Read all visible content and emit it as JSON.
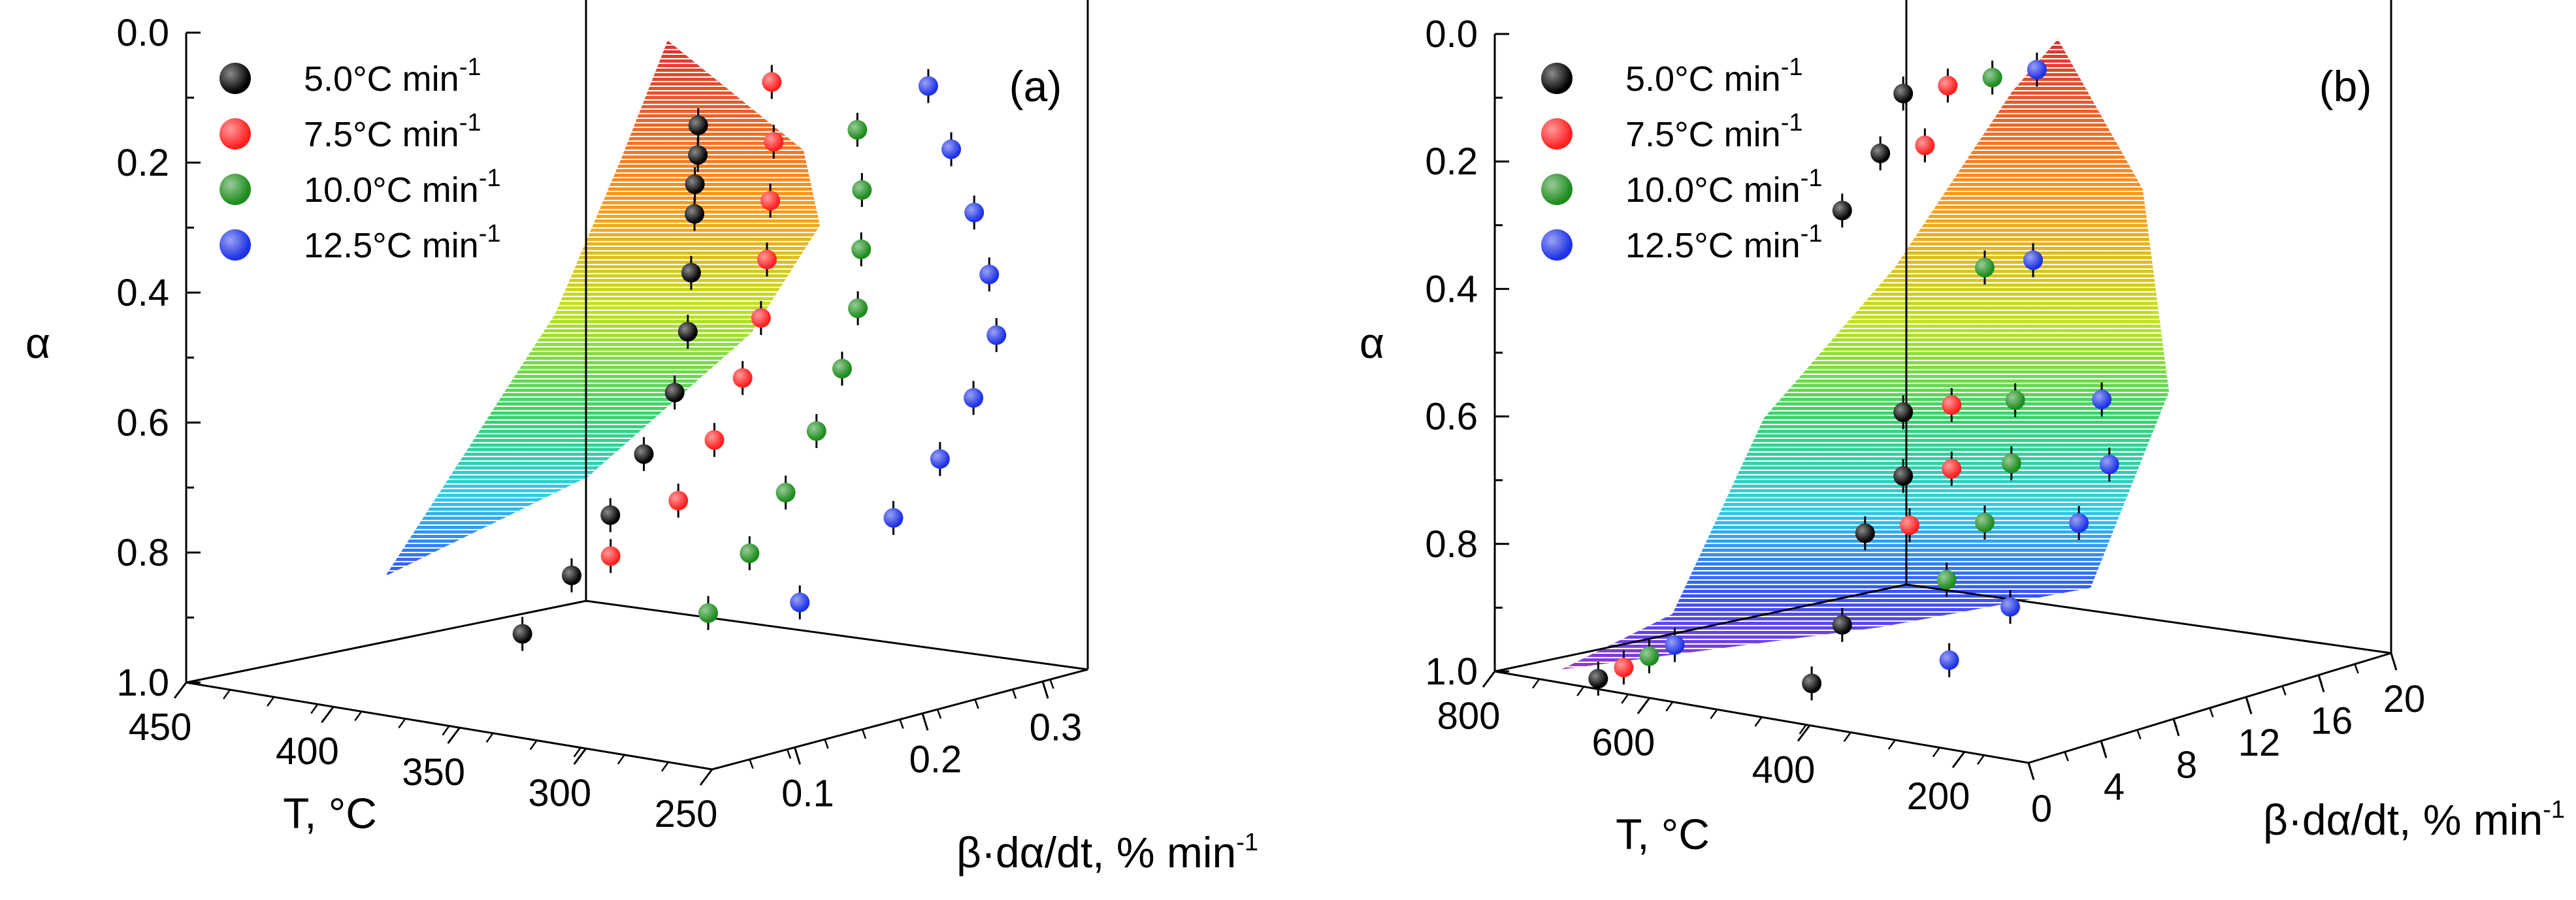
{
  "chart_data": [
    {
      "type": "scatter",
      "subtype": "3d-scatter-with-surface",
      "panel_label": "(a)",
      "axes": {
        "z": {
          "label": "α",
          "ticks": [
            "0.0",
            "0.2",
            "0.4",
            "0.6",
            "0.8",
            "1.0"
          ],
          "range": [
            0.0,
            1.0
          ]
        },
        "x": {
          "label": "T, °C",
          "ticks": [
            "450",
            "400",
            "350",
            "300",
            "250"
          ],
          "range": [
            450,
            250
          ]
        },
        "y": {
          "label_main": "β·dα/dt, % min",
          "label_exp": "-1",
          "ticks": [
            "0.1",
            "0.2",
            "0.3"
          ],
          "range": [
            0.0,
            0.35
          ]
        }
      },
      "legend": [
        {
          "label": "5.0°C min",
          "exp": "-1",
          "color": "#000000"
        },
        {
          "label": "7.5°C min",
          "exp": "-1",
          "color": "#ff2020"
        },
        {
          "label": "10.0°C min",
          "exp": "-1",
          "color": "#1e8c1e"
        },
        {
          "label": "12.5°C min",
          "exp": "-1",
          "color": "#1e32e6"
        }
      ],
      "series": [
        {
          "name": "5.0°C min-1",
          "alpha": [
            0.05,
            0.1,
            0.15,
            0.2,
            0.3,
            0.4,
            0.5,
            0.6,
            0.7,
            0.8,
            0.9
          ],
          "T": [
            300,
            302,
            305,
            307,
            312,
            317,
            322,
            330,
            339,
            350,
            365
          ]
        },
        {
          "name": "7.5°C min-1",
          "alpha": [
            0.0,
            0.1,
            0.2,
            0.3,
            0.4,
            0.5,
            0.6,
            0.7,
            0.8
          ],
          "T": [
            297,
            300,
            305,
            310,
            316,
            323,
            330,
            340,
            362
          ]
        },
        {
          "name": "10.0°C min-1",
          "alpha": [
            0.1,
            0.2,
            0.3,
            0.4,
            0.5,
            0.6,
            0.7,
            0.8,
            0.9
          ],
          "T": [
            295,
            297,
            301,
            306,
            312,
            318,
            326,
            336,
            348
          ]
        },
        {
          "name": "12.5°C min-1",
          "alpha": [
            0.05,
            0.15,
            0.25,
            0.35,
            0.45,
            0.55,
            0.65,
            0.75,
            0.9
          ],
          "T": [
            293,
            288,
            283,
            281,
            282,
            287,
            296,
            310,
            340
          ]
        }
      ]
    },
    {
      "type": "scatter",
      "subtype": "3d-scatter-with-surface",
      "panel_label": "(b)",
      "axes": {
        "z": {
          "label": "α",
          "ticks": [
            "0.0",
            "0.2",
            "0.4",
            "0.6",
            "0.8",
            "1.0"
          ],
          "range": [
            0.0,
            1.0
          ]
        },
        "x": {
          "label": "T, °C",
          "ticks": [
            "800",
            "600",
            "400",
            "200"
          ],
          "range": [
            800,
            100
          ]
        },
        "y": {
          "label_main": "β·dα/dt, % min",
          "label_exp": "-1",
          "ticks": [
            "0",
            "4",
            "8",
            "12",
            "16",
            "20"
          ],
          "range": [
            0,
            20
          ]
        }
      },
      "legend": [
        {
          "label": "5.0°C min",
          "exp": "-1",
          "color": "#000000"
        },
        {
          "label": "7.5°C min",
          "exp": "-1",
          "color": "#ff2020"
        },
        {
          "label": "10.0°C min",
          "exp": "-1",
          "color": "#1e8c1e"
        },
        {
          "label": "12.5°C min",
          "exp": "-1",
          "color": "#1e32e6"
        }
      ],
      "series": [
        {
          "name": "5.0°C min-1",
          "alpha": [
            0.0,
            0.1,
            0.2,
            0.5,
            0.6,
            0.7,
            0.85,
            0.95,
            1.0
          ],
          "T": [
            300,
            330,
            380,
            300,
            300,
            350,
            380,
            420,
            700
          ]
        },
        {
          "name": "7.5°C min-1",
          "alpha": [
            0.0,
            0.1,
            0.5,
            0.6,
            0.7,
            1.0
          ],
          "T": [
            295,
            325,
            290,
            290,
            345,
            720
          ]
        },
        {
          "name": "10.0°C min-1",
          "alpha": [
            0.0,
            0.3,
            0.5,
            0.6,
            0.7,
            0.8,
            1.0
          ],
          "T": [
            290,
            300,
            260,
            265,
            300,
            350,
            740
          ]
        },
        {
          "name": "12.5°C min-1",
          "alpha": [
            0.0,
            0.3,
            0.5,
            0.6,
            0.7,
            0.85,
            0.95,
            1.0
          ],
          "T": [
            285,
            290,
            200,
            190,
            230,
            320,
            400,
            760
          ]
        }
      ]
    }
  ]
}
